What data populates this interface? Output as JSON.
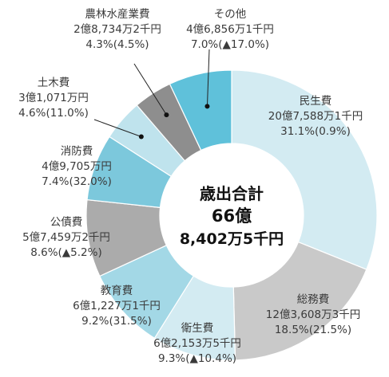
{
  "chart_data": {
    "type": "pie",
    "title": "",
    "center_label": [
      "歳出合計",
      "66億",
      "8,402万5千円"
    ],
    "slices": [
      {
        "category": "民生費",
        "amount": "20億7,588万1千円",
        "share": "31.1%(0.9%)",
        "value": 31.1,
        "color": "#d3ebf2"
      },
      {
        "category": "総務費",
        "amount": "12億3,608万3千円",
        "share": "18.5%(21.5%)",
        "value": 18.5,
        "color": "#c9c9c9"
      },
      {
        "category": "衛生費",
        "amount": "6億2,153万5千円",
        "share": "9.3%(▲10.4%)",
        "value": 9.3,
        "color": "#d3ebf2"
      },
      {
        "category": "教育費",
        "amount": "6億1,227万1千円",
        "share": "9.2%(31.5%)",
        "value": 9.2,
        "color": "#a3d8e6"
      },
      {
        "category": "公債費",
        "amount": "5億7,459万2千円",
        "share": "8.6%(▲5.2%)",
        "value": 8.6,
        "color": "#ababab"
      },
      {
        "category": "消防費",
        "amount": "4億9,705万円",
        "share": "7.4%(32.0%)",
        "value": 7.4,
        "color": "#7cc8dc"
      },
      {
        "category": "土木費",
        "amount": "3億1,071万円",
        "share": "4.6%(11.0%)",
        "value": 4.6,
        "color": "#bfe3ed"
      },
      {
        "category": "農林水産業費",
        "amount": "2億8,734万2千円",
        "share": "4.3%(4.5%)",
        "value": 4.3,
        "color": "#8e8e8e"
      },
      {
        "category": "その他",
        "amount": "4億6,856万1千円",
        "share": "7.0%(▲17.0%)",
        "value": 7.0,
        "color": "#5fc1da"
      }
    ]
  }
}
